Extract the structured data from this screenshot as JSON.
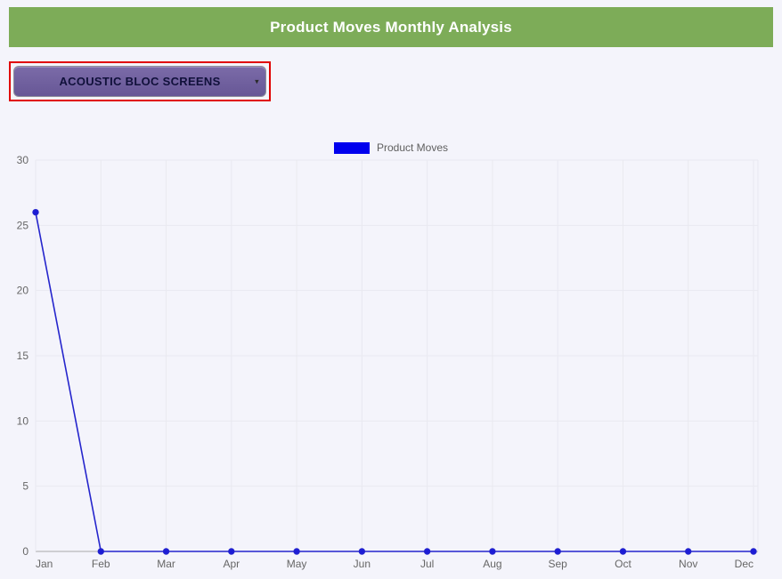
{
  "page": {
    "background_color": "#f4f4fb"
  },
  "header": {
    "title": "Product Moves Monthly Analysis",
    "background_color": "#7dac58",
    "text_color": "#ffffff"
  },
  "product_selector": {
    "value": "ACOUSTIC BLOC SCREENS",
    "background_color": "#6e5e9b",
    "text_color": "#10103a",
    "highlight_border_color": "#e00000",
    "dropdown_arrow_icon": "chevron-down"
  },
  "chart_data": {
    "type": "line",
    "title": "",
    "xlabel": "",
    "ylabel": "",
    "categories": [
      "Jan",
      "Feb",
      "Mar",
      "Apr",
      "May",
      "Jun",
      "Jul",
      "Aug",
      "Sep",
      "Oct",
      "Nov",
      "Dec"
    ],
    "series": [
      {
        "name": "Product Moves",
        "values": [
          26,
          0,
          0,
          0,
          0,
          0,
          0,
          0,
          0,
          0,
          0,
          0
        ],
        "line_color": "#2525cc",
        "point_color": "#1c1cd6"
      }
    ],
    "ylim": [
      0,
      30
    ],
    "y_ticks": [
      0,
      5,
      10,
      15,
      20,
      25,
      30
    ],
    "grid": true,
    "grid_color": "#e9e9f0",
    "axis_line_color": "#a8a8a8",
    "tick_label_color": "#666666",
    "legend_position": "top",
    "legend_swatch_color": "#0000ee"
  }
}
